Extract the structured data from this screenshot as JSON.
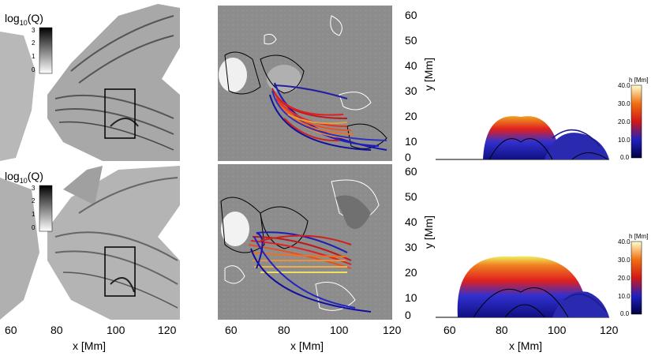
{
  "panels": {
    "q_label_top": "log",
    "q_label_sub": "10",
    "q_label_rest": "(Q)",
    "q_ticks": [
      "3",
      "2",
      "1",
      "0"
    ],
    "x_ticks_left": [
      "60",
      "80",
      "100",
      "120"
    ],
    "x_ticks_mid": [
      "60",
      "80",
      "100",
      "120"
    ],
    "x_ticks_right": [
      "60",
      "80",
      "100",
      "120"
    ],
    "x_label": "x [Mm]",
    "y_label": "y [Mm]",
    "y_ticks": [
      "60",
      "50",
      "40",
      "30",
      "20",
      "10",
      "0"
    ],
    "h_label": "h [Mm]",
    "h_ticks": [
      "40.0",
      "30.0",
      "20.0",
      "10.0",
      "0.0"
    ]
  },
  "colors": {
    "loop_low": "#1010a0",
    "loop_mid": "#e02020",
    "loop_high": "#f0e040"
  }
}
